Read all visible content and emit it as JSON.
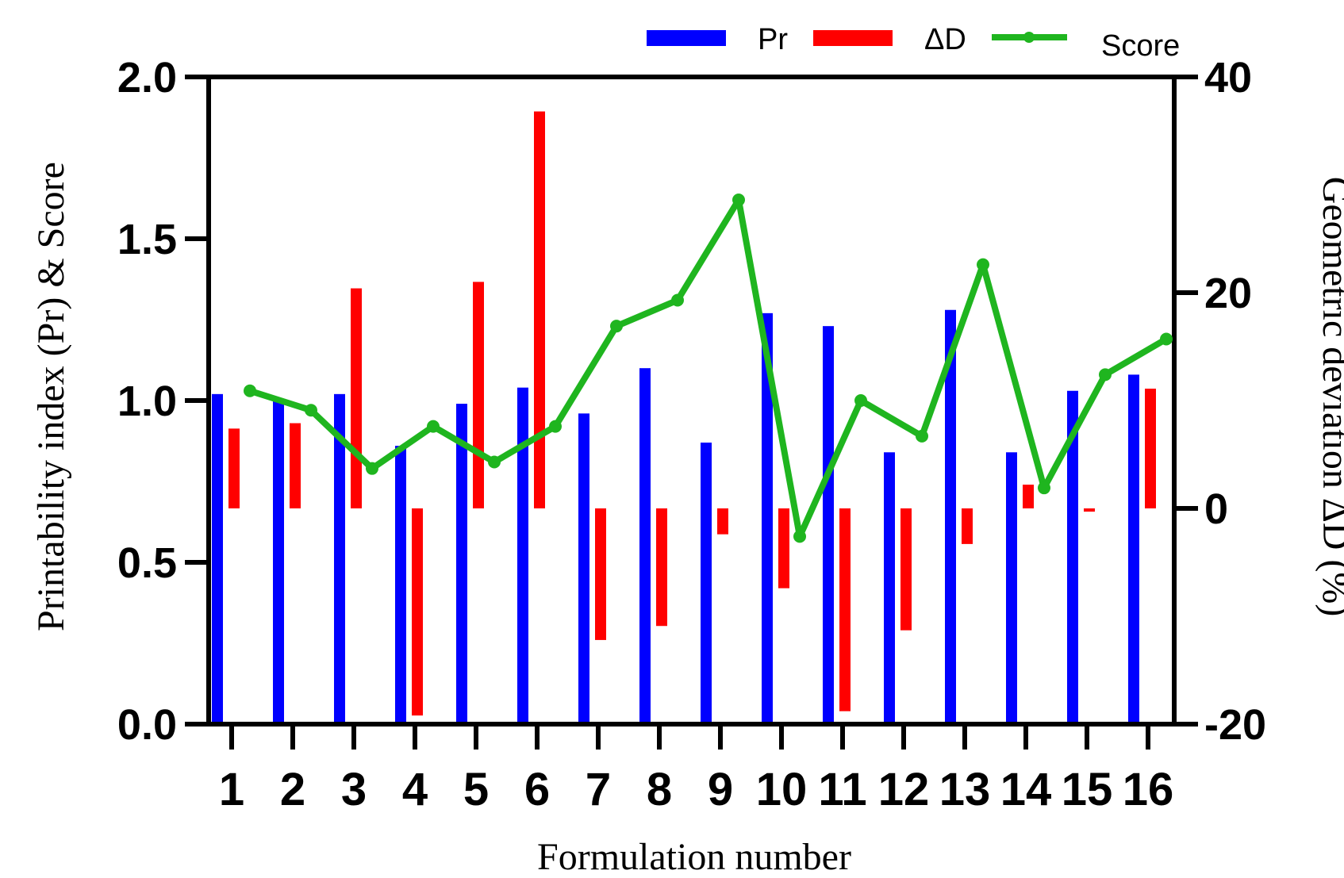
{
  "chart_data": {
    "type": "bar",
    "categories": [
      "1",
      "2",
      "3",
      "4",
      "5",
      "6",
      "7",
      "8",
      "9",
      "10",
      "11",
      "12",
      "13",
      "14",
      "15",
      "16"
    ],
    "series": [
      {
        "name": "Pr",
        "axis": "left",
        "kind": "bar",
        "color": "#0000ff",
        "values": [
          1.02,
          1.0,
          1.02,
          0.86,
          0.99,
          1.04,
          0.96,
          1.1,
          0.87,
          1.27,
          1.23,
          0.84,
          1.28,
          0.84,
          1.03,
          1.08
        ]
      },
      {
        "name": "ΔD",
        "axis": "right",
        "kind": "bar",
        "color": "#ff0000",
        "values": [
          7.4,
          7.9,
          20.4,
          -19.2,
          21.0,
          36.8,
          -12.2,
          -10.9,
          -2.4,
          -7.4,
          -18.8,
          -11.3,
          -3.3,
          2.2,
          -0.3,
          11.1
        ]
      },
      {
        "name": "Score",
        "axis": "left",
        "kind": "line",
        "color": "#1fb51f",
        "values": [
          1.03,
          0.97,
          0.79,
          0.92,
          0.81,
          0.92,
          1.23,
          1.31,
          1.62,
          0.58,
          1.0,
          0.89,
          1.42,
          0.73,
          1.08,
          1.19
        ]
      }
    ],
    "xlabel": "Formulation number",
    "ylabel_left": "Printability index (Pr) & Score",
    "ylabel_right": "Geometric deviation ΔD (%)",
    "ylim_left": [
      0,
      2.0
    ],
    "ylim_right": [
      -20,
      40
    ],
    "yticks_left": [
      "0.0",
      "0.5",
      "1.0",
      "1.5",
      "2.0"
    ],
    "yticks_right": [
      "-20",
      "0",
      "20",
      "40"
    ],
    "legend": {
      "placement": "top-right",
      "entries": [
        "Pr",
        "ΔD",
        "Score"
      ]
    },
    "grid": false
  }
}
